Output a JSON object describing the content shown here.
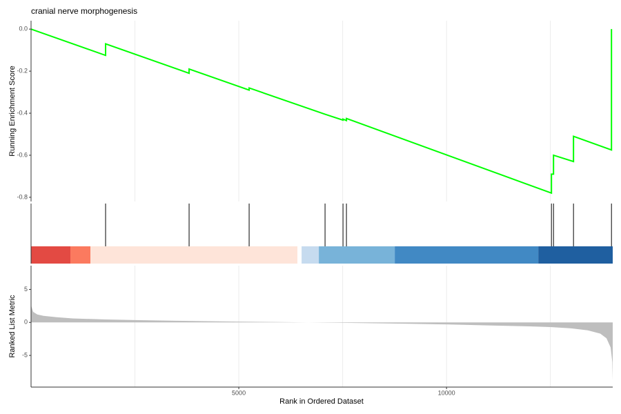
{
  "chart_data": [
    {
      "type": "line",
      "title": "cranial nerve morphogenesis",
      "y_label": "Running Enrichment Score",
      "color": "#00ff00",
      "x": [
        0,
        1794,
        1794,
        3804,
        3804,
        5249,
        5249,
        7076,
        7508,
        7508,
        7591,
        7591,
        12525,
        12525,
        12575,
        12575,
        13056,
        13056,
        13970,
        13970
      ],
      "values": [
        0,
        -0.125,
        -0.07,
        -0.21,
        -0.19,
        -0.29,
        -0.28,
        -0.405,
        -0.433,
        -0.428,
        -0.435,
        -0.425,
        -0.78,
        -0.69,
        -0.69,
        -0.6,
        -0.63,
        -0.51,
        -0.575,
        0
      ],
      "xlim": [
        0,
        14000
      ],
      "xgrid": [
        2500,
        5000,
        7500,
        10000,
        12500
      ],
      "ylim": [
        -0.82,
        0.04
      ],
      "yticks": [
        {
          "value": 0,
          "label": "0.0"
        },
        {
          "value": -0.2,
          "label": "-0.2"
        },
        {
          "value": -0.4,
          "label": "-0.4"
        },
        {
          "value": -0.6,
          "label": "-0.6"
        },
        {
          "value": -0.8,
          "label": "-0.8"
        }
      ]
    },
    {
      "type": "rug",
      "x": [
        1794,
        3804,
        5249,
        7076,
        7508,
        7591,
        12525,
        12575,
        13056,
        13970
      ],
      "xlim": [
        0,
        14000
      ],
      "xgrid": [
        2500,
        5000,
        7500,
        10000,
        12500
      ],
      "band_starts": [
        0,
        947,
        1429,
        6412,
        6512,
        6927,
        8754,
        12209
      ],
      "band_ends": [
        947,
        1429,
        6412,
        6512,
        6927,
        8754,
        12209,
        14000
      ],
      "band_colors": [
        "#e34a43",
        "#fb7a5f",
        "#fee4d9",
        "#ffffff",
        "#c6dbef",
        "#78b3d9",
        "#4189c4",
        "#1f5fa0"
      ]
    },
    {
      "type": "area",
      "y_label": "Ranked List Metric",
      "x_label": "Rank in Ordered Dataset",
      "color": "#bebebe",
      "x": [
        0,
        50,
        150,
        300,
        600,
        1000,
        1800,
        2500,
        3500,
        5000,
        6000,
        7000,
        8000,
        9000,
        10000,
        11000,
        12000,
        12500,
        13000,
        13400,
        13700,
        13850,
        13950,
        13990,
        14000
      ],
      "values": [
        2.6,
        1.6,
        1.2,
        1.0,
        0.8,
        0.6,
        0.45,
        0.35,
        0.25,
        0.12,
        0.05,
        -0.02,
        -0.1,
        -0.2,
        -0.3,
        -0.45,
        -0.6,
        -0.7,
        -0.9,
        -1.2,
        -1.7,
        -2.4,
        -3.8,
        -6,
        -8.8
      ],
      "xlim": [
        0,
        14000
      ],
      "xgrid": [
        2500,
        5000,
        7500,
        10000,
        12500
      ],
      "xticks": [
        5000,
        10000
      ],
      "ylim": [
        -9.8,
        8.6
      ],
      "yticks": [
        5,
        0,
        -5
      ]
    }
  ]
}
